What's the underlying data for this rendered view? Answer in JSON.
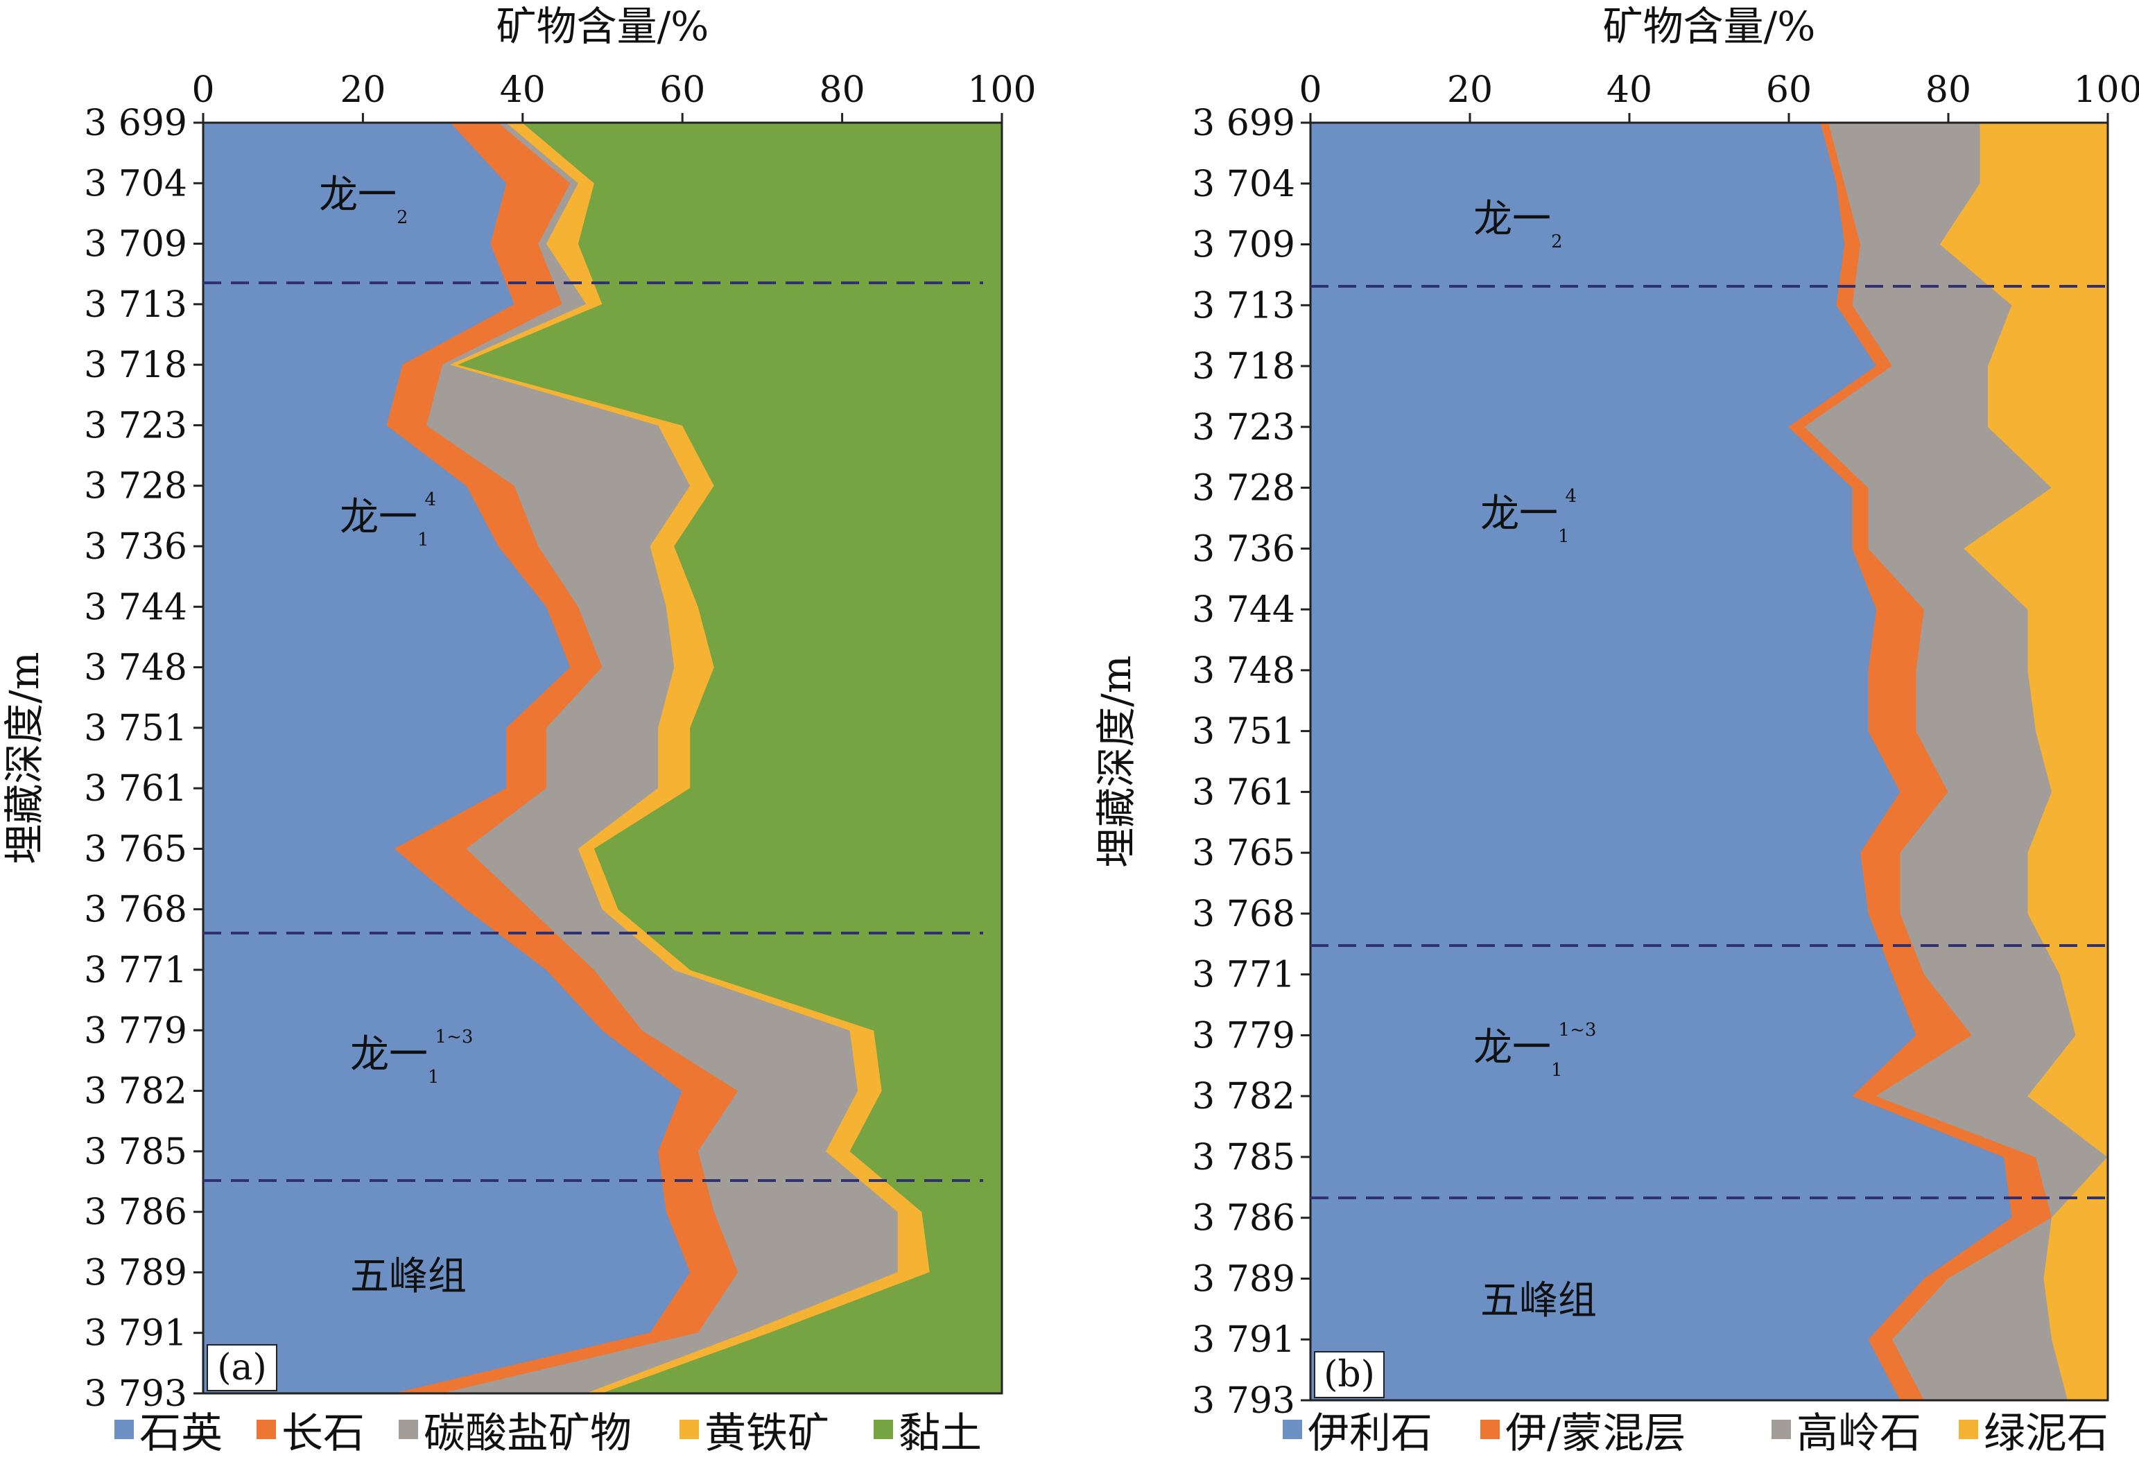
{
  "chart_data": [
    {
      "type": "area",
      "panel_label": "(a)",
      "xlabel": "矿物含量/%",
      "ylabel": "埋藏深度/m",
      "xlim": [
        0,
        100
      ],
      "x_ticks": [
        "0",
        "20",
        "40",
        "60",
        "80",
        "100"
      ],
      "stacked": true,
      "depths": [
        "3 699",
        "3 704",
        "3 709",
        "3 713",
        "3 718",
        "3 723",
        "3 728",
        "3 736",
        "3 744",
        "3 748",
        "3 751",
        "3 761",
        "3 765",
        "3 768",
        "3 771",
        "3 779",
        "3 782",
        "3 785",
        "3 786",
        "3 789",
        "3 791",
        "3 793"
      ],
      "series": [
        {
          "name": "石英",
          "color": "#6c8fc4",
          "values": [
            31,
            38,
            36,
            39,
            25,
            23,
            33,
            37,
            43,
            46,
            38,
            38,
            24,
            33,
            43,
            50,
            60,
            57,
            58,
            61,
            56,
            24
          ]
        },
        {
          "name": "长石",
          "color": "#ee7633",
          "values": [
            6,
            8,
            6,
            6,
            5,
            5,
            6,
            5,
            4,
            4,
            5,
            5,
            9,
            8,
            6,
            5,
            7,
            5,
            6,
            6,
            6,
            6
          ]
        },
        {
          "name": "碳酸盐矿物",
          "color": "#a39d9a",
          "values": [
            1,
            1,
            1,
            3,
            1,
            29,
            22,
            14,
            11,
            9,
            14,
            14,
            14,
            9,
            10,
            26,
            15,
            16,
            23,
            20,
            6,
            18
          ]
        },
        {
          "name": "黄铁矿",
          "color": "#f6b232",
          "values": [
            2,
            2,
            4,
            2,
            1,
            3,
            3,
            3,
            4,
            5,
            4,
            4,
            2,
            2,
            2,
            3,
            3,
            3,
            3,
            4,
            3,
            2
          ]
        },
        {
          "name": "黏土",
          "color": "#76a443",
          "values": [
            60,
            51,
            53,
            50,
            68,
            40,
            36,
            41,
            38,
            36,
            39,
            39,
            51,
            48,
            39,
            16,
            15,
            19,
            10,
            9,
            29,
            50
          ]
        }
      ],
      "boundaries": [
        "3 711",
        "3 769",
        "3 786"
      ],
      "zones": [
        {
          "label": "龙一",
          "sub": "2",
          "sup": ""
        },
        {
          "label": "龙一",
          "sub": "1",
          "sup": "4"
        },
        {
          "label": "龙一",
          "sub": "1",
          "sup": "1~3"
        },
        {
          "label": "五峰组",
          "sub": "",
          "sup": ""
        }
      ]
    },
    {
      "type": "area",
      "panel_label": "(b)",
      "xlabel": "矿物含量/%",
      "ylabel": "埋藏深度/m",
      "xlim": [
        0,
        100
      ],
      "x_ticks": [
        "0",
        "20",
        "40",
        "60",
        "80",
        "100"
      ],
      "stacked": true,
      "depths": [
        "3 699",
        "3 704",
        "3 709",
        "3 713",
        "3 718",
        "3 723",
        "3 728",
        "3 736",
        "3 744",
        "3 748",
        "3 751",
        "3 761",
        "3 765",
        "3 768",
        "3 771",
        "3 779",
        "3 782",
        "3 785",
        "3 786",
        "3 789",
        "3 791",
        "3 793"
      ],
      "series": [
        {
          "name": "伊利石",
          "color": "#6c8fc4",
          "values": [
            64,
            66,
            67,
            66,
            71,
            60,
            68,
            68,
            71,
            70,
            70,
            74,
            69,
            70,
            73,
            76,
            68,
            87,
            88,
            77,
            70,
            74
          ]
        },
        {
          "name": "伊/蒙混层",
          "color": "#ee7633",
          "values": [
            1,
            1,
            2,
            2,
            2,
            2,
            2,
            2,
            6,
            6,
            6,
            6,
            5,
            4,
            4,
            7,
            3,
            4,
            5,
            3,
            3,
            3
          ]
        },
        {
          "name": "高岭石",
          "color": "#a39d9a",
          "values": [
            19,
            17,
            10,
            20,
            12,
            23,
            23,
            12,
            13,
            14,
            15,
            13,
            16,
            16,
            17,
            13,
            19,
            9,
            0,
            12,
            20,
            18
          ]
        },
        {
          "name": "绿泥石",
          "color": "#f6b232",
          "values": [
            16,
            16,
            21,
            12,
            15,
            15,
            7,
            18,
            10,
            10,
            9,
            7,
            10,
            10,
            6,
            4,
            10,
            0,
            7,
            8,
            7,
            5
          ]
        }
      ],
      "boundaries": [
        "3 711",
        "3 769",
        "3 786"
      ],
      "zones": [
        {
          "label": "龙一",
          "sub": "2",
          "sup": ""
        },
        {
          "label": "龙一",
          "sub": "1",
          "sup": "4"
        },
        {
          "label": "龙一",
          "sub": "1",
          "sup": "1~3"
        },
        {
          "label": "五峰组",
          "sub": "",
          "sup": ""
        }
      ]
    }
  ]
}
